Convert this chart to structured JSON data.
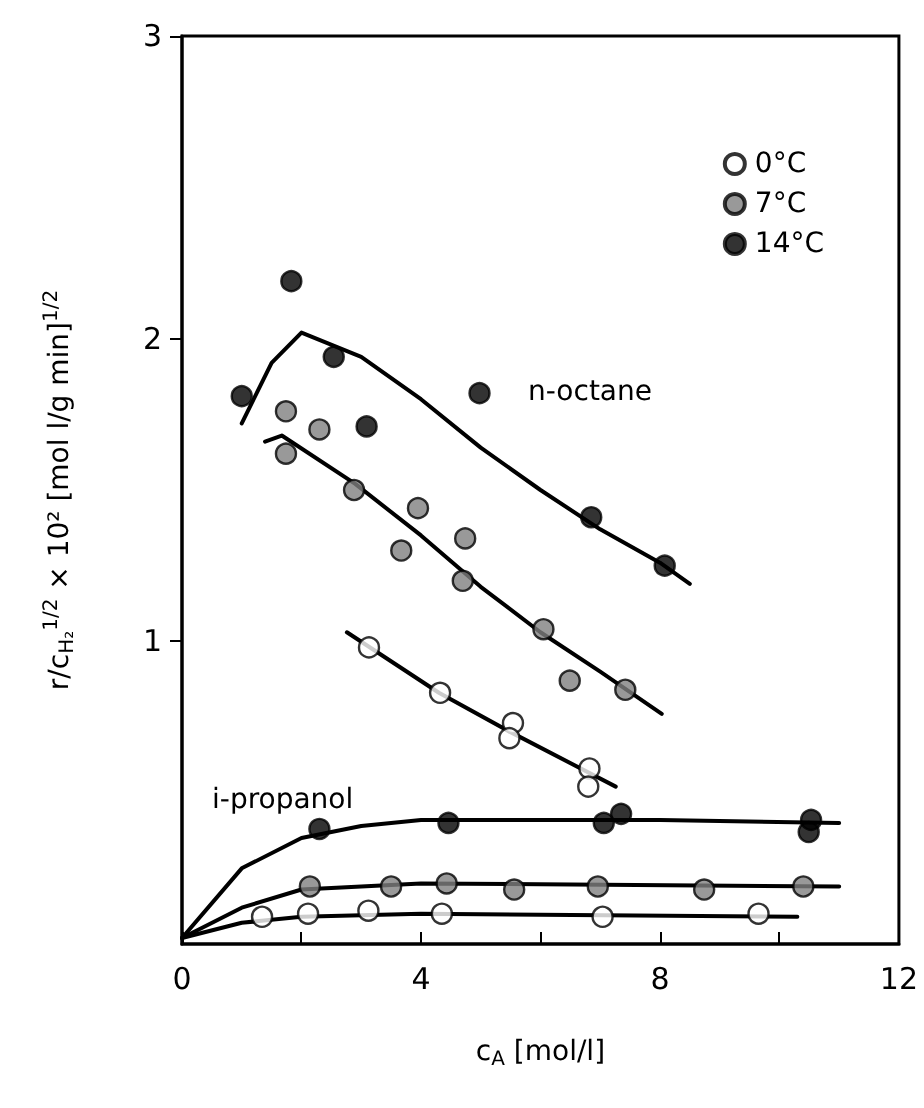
{
  "chart_data": {
    "type": "scatter",
    "xlabel": "c$_{A}$ [mol/l]",
    "ylabel": "r/c$_{H₂}$$^{1/2}$ × 10² [mol l/g min]$^{1/2}$",
    "xlim": [
      0,
      12
    ],
    "ylim": [
      0,
      3
    ],
    "xticks": [
      0,
      {
        "value": 2,
        "label": null
      },
      4,
      {
        "value": 6,
        "label": null
      },
      8,
      {
        "value": 10,
        "label": null
      },
      12
    ],
    "yticks": [
      1,
      2,
      3
    ],
    "grid": false,
    "legend": "top right",
    "marker": "circle",
    "annotations": [
      "n-octane",
      "i-propanol"
    ],
    "series": [
      {
        "name": "0°C",
        "color": "#ffffff",
        "x": [
          3.13,
          4.32,
          5.54,
          5.48,
          6.82,
          6.8,
          1.34,
          2.11,
          3.12,
          4.35,
          7.04,
          9.65
        ],
        "values": [
          0.98,
          0.83,
          0.73,
          0.68,
          0.58,
          0.52,
          0.09,
          0.1,
          0.11,
          0.1,
          0.09,
          0.1
        ]
      },
      {
        "name": "7°C",
        "color": "#808080",
        "x": [
          1.74,
          2.3,
          1.74,
          2.88,
          3.95,
          4.74,
          3.67,
          4.7,
          6.05,
          6.49,
          7.42,
          2.14,
          3.5,
          4.43,
          5.56,
          6.96,
          8.74,
          10.4
        ],
        "values": [
          1.76,
          1.7,
          1.62,
          1.5,
          1.44,
          1.34,
          1.3,
          1.2,
          1.04,
          0.87,
          0.84,
          0.19,
          0.19,
          0.2,
          0.18,
          0.19,
          0.18,
          0.19
        ]
      },
      {
        "name": "14°C",
        "color": "#000000",
        "x": [
          1.0,
          1.83,
          2.54,
          3.09,
          4.98,
          6.85,
          8.08,
          2.3,
          4.46,
          7.06,
          7.35,
          10.53,
          10.49
        ],
        "values": [
          1.81,
          2.19,
          1.94,
          1.71,
          1.82,
          1.41,
          1.25,
          0.38,
          0.4,
          0.4,
          0.43,
          0.41,
          0.37
        ]
      },
      {
        "type": "line",
        "color": "#000000",
        "marker": "none",
        "x": [
          1.0,
          1.5,
          2.0,
          3,
          4,
          5,
          6,
          7,
          8,
          8.5
        ],
        "values": [
          1.72,
          1.92,
          2.02,
          1.94,
          1.8,
          1.64,
          1.5,
          1.37,
          1.26,
          1.19
        ]
      },
      {
        "type": "line",
        "color": "#000000",
        "marker": "none",
        "x": [
          1.39,
          1.67,
          2.9,
          4,
          5,
          6,
          7,
          8.03
        ],
        "values": [
          1.66,
          1.68,
          1.52,
          1.35,
          1.18,
          1.03,
          0.9,
          0.76
        ]
      },
      {
        "type": "line",
        "color": "#000000",
        "marker": "none",
        "x": [
          2.76,
          4.3,
          5.5,
          7.26
        ],
        "values": [
          1.03,
          0.83,
          0.7,
          0.52
        ]
      },
      {
        "type": "line",
        "color": "#000000",
        "marker": "none",
        "x": [
          0,
          1,
          2,
          3,
          4,
          6,
          8,
          11
        ],
        "values": [
          0.02,
          0.25,
          0.35,
          0.39,
          0.41,
          0.41,
          0.41,
          0.4
        ]
      },
      {
        "type": "line",
        "color": "#000000",
        "marker": "none",
        "x": [
          0,
          1,
          2,
          4,
          11
        ],
        "values": [
          0.02,
          0.12,
          0.18,
          0.2,
          0.19
        ]
      },
      {
        "type": "line",
        "color": "#000000",
        "marker": "none",
        "x": [
          0,
          1,
          2,
          4,
          10.3
        ],
        "values": [
          0.02,
          0.07,
          0.09,
          0.1,
          0.09
        ]
      }
    ]
  }
}
